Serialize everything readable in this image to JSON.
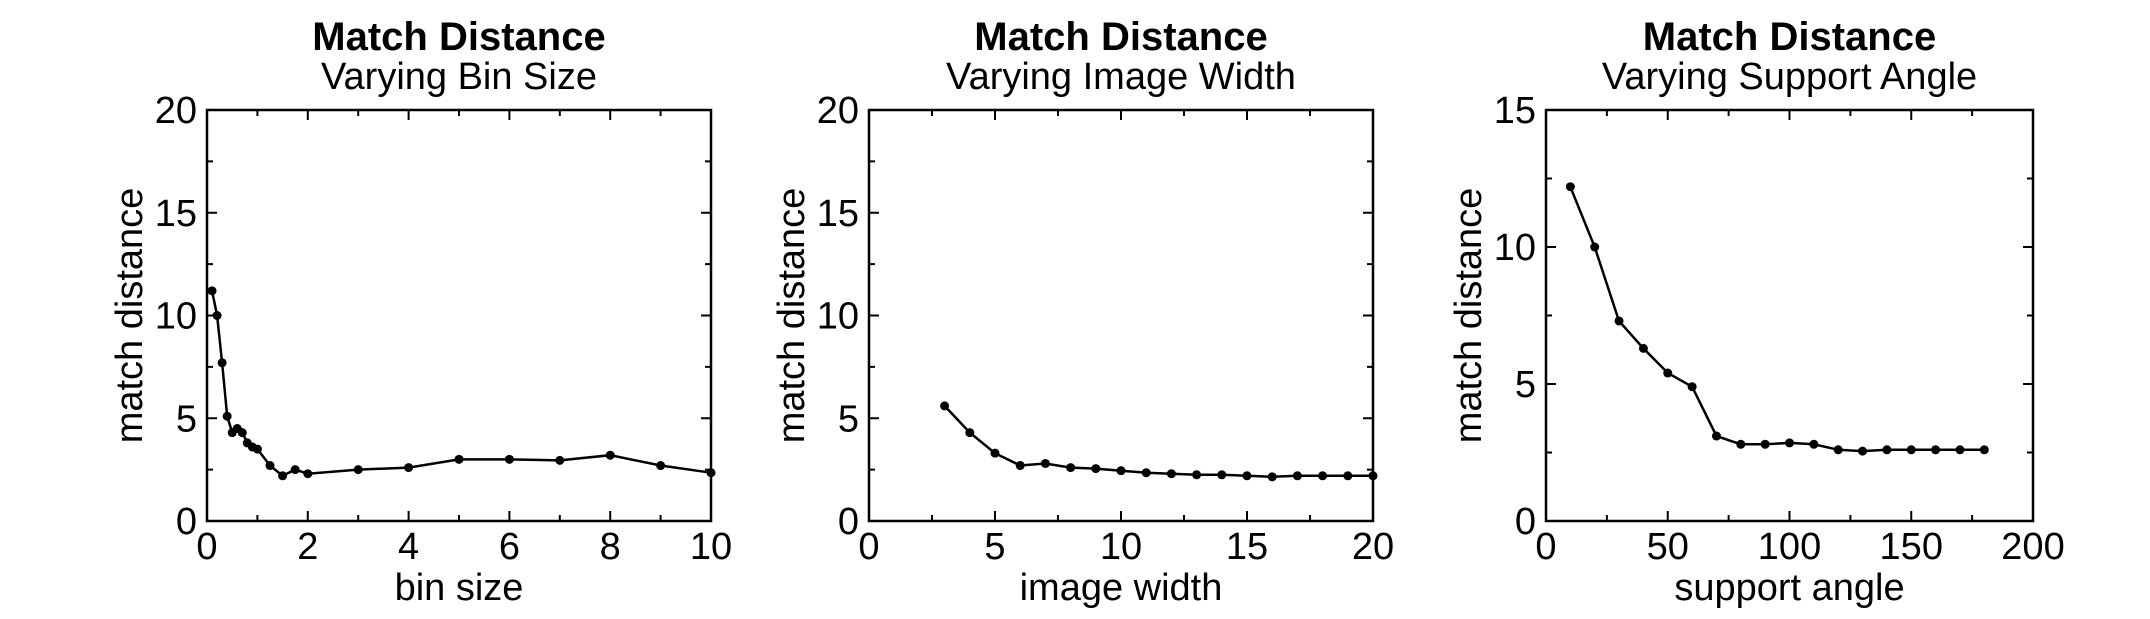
{
  "chart_data": [
    {
      "type": "line",
      "title": "Match Distance",
      "subtitle": "Varying Bin Size",
      "xlabel": "bin size",
      "ylabel": "match distance",
      "xlim": [
        0,
        10
      ],
      "ylim": [
        0,
        20
      ],
      "xticks": [
        0,
        2,
        4,
        6,
        8,
        10
      ],
      "yticks": [
        0,
        5,
        10,
        15,
        20
      ],
      "grid": false,
      "x": [
        0.1,
        0.2,
        0.3,
        0.4,
        0.5,
        0.6,
        0.7,
        0.8,
        0.9,
        1.0,
        1.25,
        1.5,
        1.75,
        2,
        3,
        4,
        5,
        6,
        7,
        8,
        9,
        10
      ],
      "y": [
        11.2,
        10.0,
        7.7,
        5.1,
        4.3,
        4.5,
        4.3,
        3.8,
        3.6,
        3.5,
        2.7,
        2.2,
        2.5,
        2.3,
        2.5,
        2.6,
        3.0,
        3.0,
        2.95,
        3.2,
        2.7,
        2.35
      ]
    },
    {
      "type": "line",
      "title": "Match Distance",
      "subtitle": "Varying Image Width",
      "xlabel": "image width",
      "ylabel": "match distance",
      "xlim": [
        0,
        20
      ],
      "ylim": [
        0,
        20
      ],
      "xticks": [
        0,
        5,
        10,
        15,
        20
      ],
      "yticks": [
        0,
        5,
        10,
        15,
        20
      ],
      "grid": false,
      "x": [
        3,
        4,
        5,
        6,
        7,
        8,
        9,
        10,
        11,
        12,
        13,
        14,
        15,
        16,
        17,
        18,
        19,
        20
      ],
      "y": [
        5.6,
        4.3,
        3.3,
        2.7,
        2.8,
        2.6,
        2.55,
        2.45,
        2.35,
        2.3,
        2.25,
        2.25,
        2.2,
        2.15,
        2.2,
        2.2,
        2.2,
        2.2
      ]
    },
    {
      "type": "line",
      "title": "Match Distance",
      "subtitle": "Varying Support Angle",
      "xlabel": "support angle",
      "ylabel": "match distance",
      "xlim": [
        0,
        200
      ],
      "ylim": [
        0,
        15
      ],
      "xticks": [
        0,
        50,
        100,
        150,
        200
      ],
      "yticks": [
        0,
        5,
        10,
        15
      ],
      "grid": false,
      "x": [
        10,
        20,
        30,
        40,
        50,
        60,
        70,
        80,
        90,
        100,
        110,
        120,
        130,
        140,
        150,
        160,
        170,
        180
      ],
      "y": [
        12.2,
        10.0,
        7.3,
        6.3,
        5.4,
        4.9,
        3.1,
        2.8,
        2.8,
        2.85,
        2.8,
        2.6,
        2.55,
        2.6,
        2.6,
        2.6,
        2.6,
        2.6
      ]
    }
  ]
}
